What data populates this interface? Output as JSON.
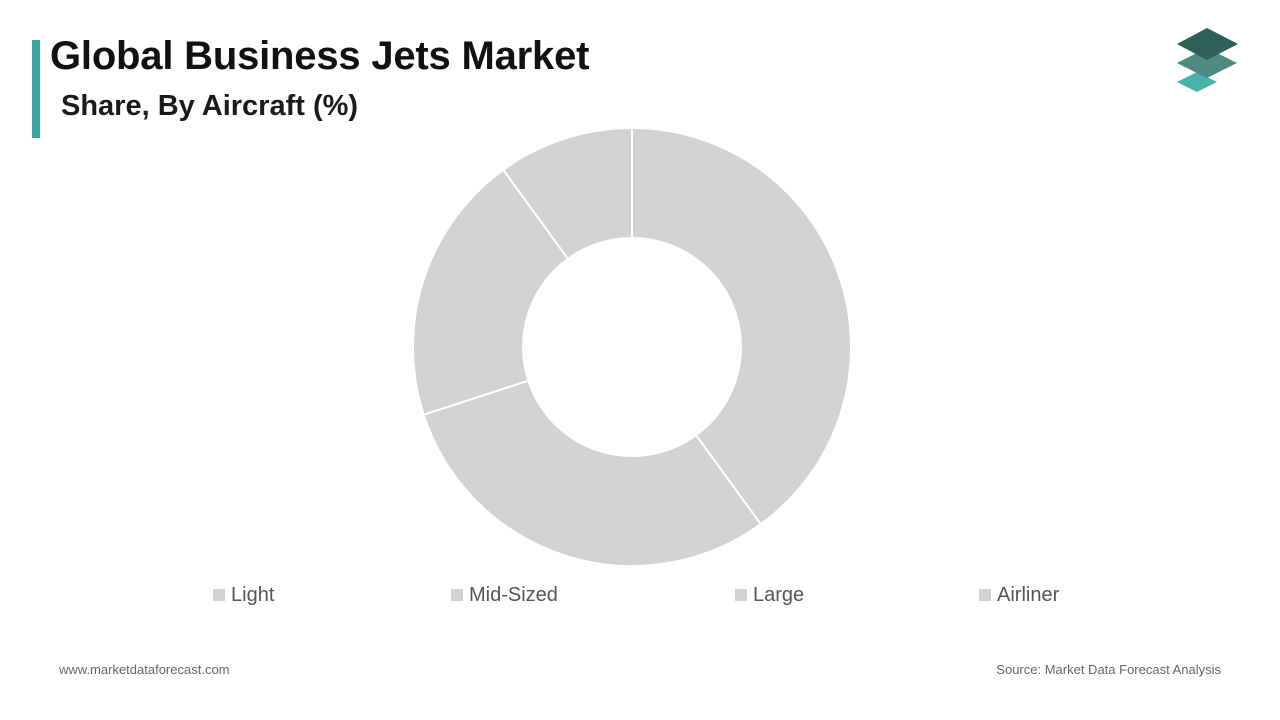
{
  "header": {
    "title": "Global Business Jets Market",
    "subtitle": "Share, By Aircraft (%)"
  },
  "brand": {
    "logo_icon": "stacked-layers-icon",
    "accent_color": "#3aa6a2",
    "logo_colors": [
      "#2f5f58",
      "#4f8a82",
      "#46b3ad"
    ]
  },
  "chart_data": {
    "type": "pie",
    "donut": true,
    "title": "Global Business Jets Market",
    "subtitle": "Share, By Aircraft (%)",
    "categories": [
      "Light",
      "Mid-Sized",
      "Large",
      "Airliner"
    ],
    "values": [
      40,
      30,
      20,
      10
    ],
    "colors": [
      "#d3d2d3",
      "#d3d2d3",
      "#d3d2d3",
      "#d3d2d3"
    ],
    "legend_position": "bottom",
    "data_labels": false
  },
  "footer": {
    "website": "www.marketdataforecast.com",
    "source": "Source: Market Data Forecast Analysis"
  }
}
